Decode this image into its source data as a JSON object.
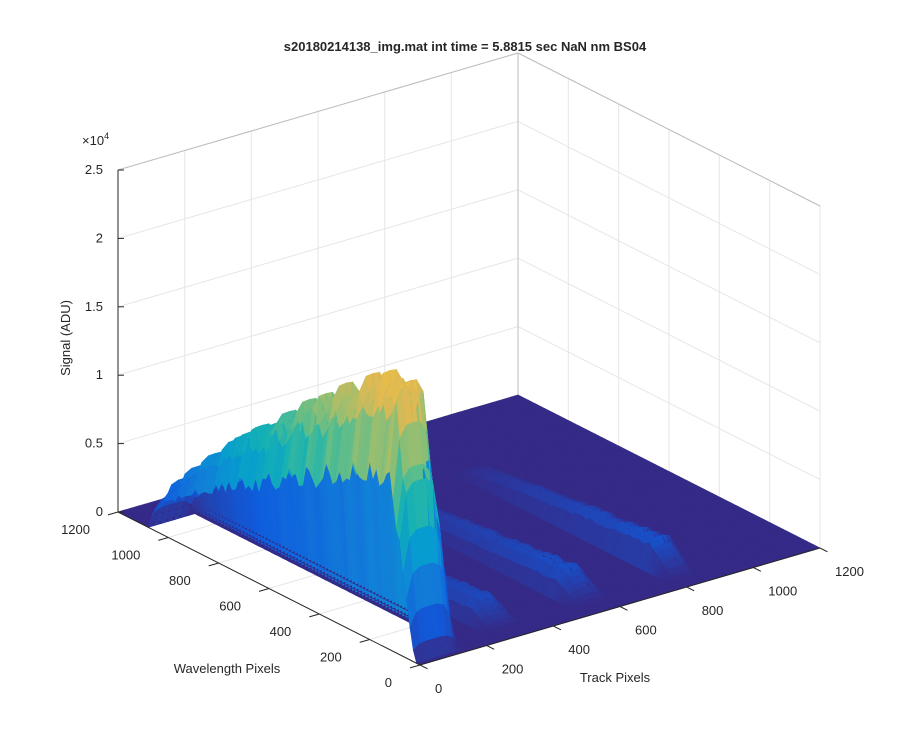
{
  "chart_data": {
    "type": "surface3d",
    "title": "s20180214138_img.mat int time = 5.8815 sec  NaN nm BS04",
    "xlabel": "Track Pixels",
    "ylabel": "Wavelength Pixels",
    "zlabel": "Signal (ADU)",
    "z_exponent_label": "×10",
    "z_exponent_power": "4",
    "xlim": [
      0,
      1200
    ],
    "ylim": [
      0,
      1200
    ],
    "zlim": [
      0,
      25000
    ],
    "x_ticks": [
      "0",
      "200",
      "400",
      "600",
      "800",
      "1000",
      "1200"
    ],
    "y_ticks": [
      "0",
      "200",
      "400",
      "600",
      "800",
      "1000",
      "1200"
    ],
    "z_ticks": [
      "0",
      "0.5",
      "1",
      "1.5",
      "2",
      "2.5"
    ],
    "colormap": "parula",
    "grid": true,
    "tracks": [
      {
        "track_center": 60,
        "track_halfwidth": 70,
        "wavelength_start": 20,
        "wavelength_end": 1080,
        "peak_signal": 23000
      },
      {
        "track_center": 300,
        "track_halfwidth": 45,
        "wavelength_start": 60,
        "wavelength_end": 900,
        "peak_signal": 1900
      },
      {
        "track_center": 560,
        "track_halfwidth": 45,
        "wavelength_start": 60,
        "wavelength_end": 900,
        "peak_signal": 2200
      },
      {
        "track_center": 830,
        "track_halfwidth": 45,
        "wavelength_start": 60,
        "wavelength_end": 900,
        "peak_signal": 2400
      }
    ]
  }
}
